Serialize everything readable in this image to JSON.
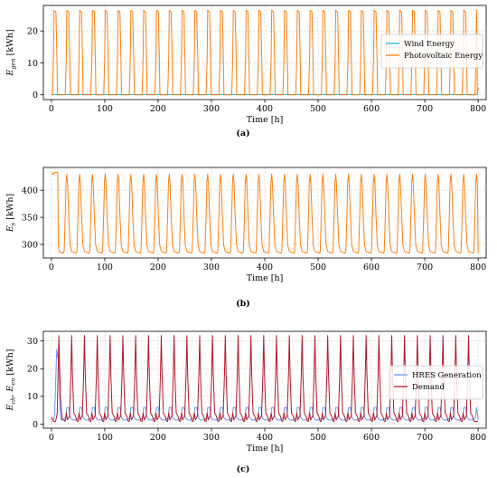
{
  "colors": {
    "wind": "#17becf",
    "pv": "#ff7f0e",
    "storage": "#ff7f0e",
    "hres": "#6495ed",
    "demand": "#b2182b"
  },
  "chart_data": [
    {
      "type": "line",
      "caption": "(a)",
      "xlabel": "Time [h]",
      "ylabel": "E_{gen} [kWh]",
      "ylabel_main": "E",
      "ylabel_sub": "gen",
      "ylabel_unit": " [kWh]",
      "xlim": [
        -15,
        815
      ],
      "ylim": [
        -1.5,
        28
      ],
      "xticks": [
        0,
        100,
        200,
        300,
        400,
        500,
        600,
        700,
        800
      ],
      "yticks": [
        0,
        10,
        20
      ],
      "grid": true,
      "legend_position": "right",
      "series": [
        {
          "name": "Wind Energy",
          "shape": "flat",
          "level": 0.1,
          "start": 0,
          "end": 800
        },
        {
          "name": "Photovoltaic Energy",
          "shape": "daily_peak",
          "base": 0,
          "peak": 26.5,
          "period": 24,
          "first_peak": 7,
          "width": 9,
          "start": 0,
          "end": 800,
          "end_value": 2.3
        }
      ]
    },
    {
      "type": "line",
      "caption": "(b)",
      "xlabel": "Time [h]",
      "ylabel": "E_s [kWh]",
      "ylabel_main": "E",
      "ylabel_sub": "s",
      "ylabel_unit": " [kWh]",
      "xlim": [
        -15,
        815
      ],
      "ylim": [
        275,
        442
      ],
      "xticks": [
        0,
        100,
        200,
        300,
        400,
        500,
        600,
        700,
        800
      ],
      "yticks": [
        300,
        350,
        400
      ],
      "grid": true,
      "series": [
        {
          "name": "",
          "shape": "storage",
          "initial_points": [
            [
              0,
              432
            ],
            [
              2,
              430
            ],
            [
              4,
              429
            ],
            [
              5,
              433
            ],
            [
              12,
              433
            ]
          ],
          "base": 284,
          "peak": 430,
          "period": 24,
          "first_peak": 29,
          "start": 12,
          "end": 800
        }
      ]
    },
    {
      "type": "line",
      "caption": "(c)",
      "xlabel": "Time [h]",
      "ylabel": "E_{ch}, E_{en} [kWh]",
      "ylabel_main_1": "E",
      "ylabel_sub_1": "ch",
      "ylabel_sep": ", ",
      "ylabel_main_2": "E",
      "ylabel_sub_2": "en",
      "ylabel_unit": " [kWh]",
      "xlim": [
        -15,
        815
      ],
      "ylim": [
        -1.5,
        33.5
      ],
      "xticks": [
        0,
        100,
        200,
        300,
        400,
        500,
        600,
        700,
        800
      ],
      "yticks": [
        0,
        10,
        20,
        30
      ],
      "grid": true,
      "legend_position": "right",
      "series": [
        {
          "name": "HRES Generation",
          "shape": "hres",
          "initial_points": [
            [
              0,
              2
            ],
            [
              4,
              1.5
            ],
            [
              6,
              3
            ],
            [
              8,
              15
            ],
            [
              10,
              27
            ],
            [
              12,
              24
            ],
            [
              14,
              25
            ],
            [
              16,
              6
            ],
            [
              18,
              1.5
            ]
          ],
          "base": 1.5,
          "peak": 6,
          "period": 24,
          "first_peak": 31,
          "start": 18,
          "end": 800
        },
        {
          "name": "Demand",
          "shape": "demand",
          "initial_points": [
            [
              0,
              2.5
            ],
            [
              4,
              1
            ],
            [
              8,
              1
            ],
            [
              11,
              4
            ],
            [
              14,
              32
            ],
            [
              17,
              10
            ],
            [
              20,
              2
            ]
          ],
          "base": 1,
          "peak": 32,
          "small": 4,
          "period": 24,
          "first_peak": 38,
          "start": 20,
          "end": 800
        }
      ]
    }
  ]
}
